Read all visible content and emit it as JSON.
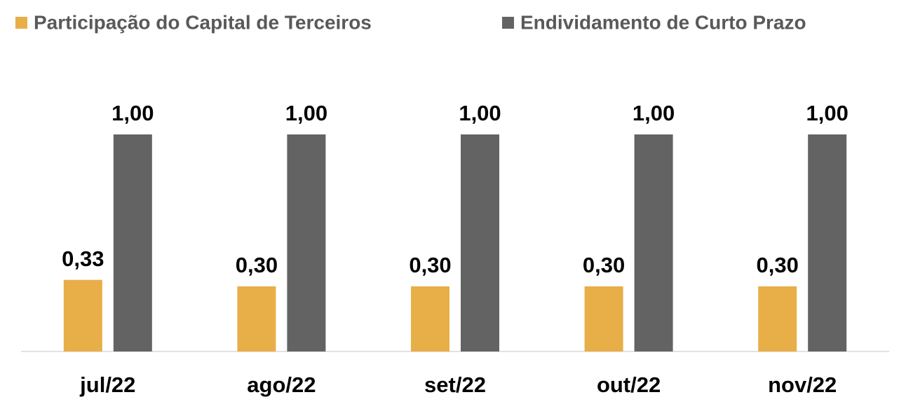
{
  "chart_data": {
    "type": "bar",
    "categories": [
      "jul/22",
      "ago/22",
      "set/22",
      "out/22",
      "nov/22"
    ],
    "series": [
      {
        "name": "Participação do Capital de Terceiros",
        "color": "#e8ae48",
        "values": [
          0.33,
          0.3,
          0.3,
          0.3,
          0.3
        ],
        "value_labels": [
          "0,33",
          "0,30",
          "0,30",
          "0,30",
          "0,30"
        ]
      },
      {
        "name": "Endividamento de Curto Prazo",
        "color": "#636363",
        "values": [
          1.0,
          1.0,
          1.0,
          1.0,
          1.0
        ],
        "value_labels": [
          "1,00",
          "1,00",
          "1,00",
          "1,00",
          "1,00"
        ]
      }
    ],
    "legend": "top"
  }
}
